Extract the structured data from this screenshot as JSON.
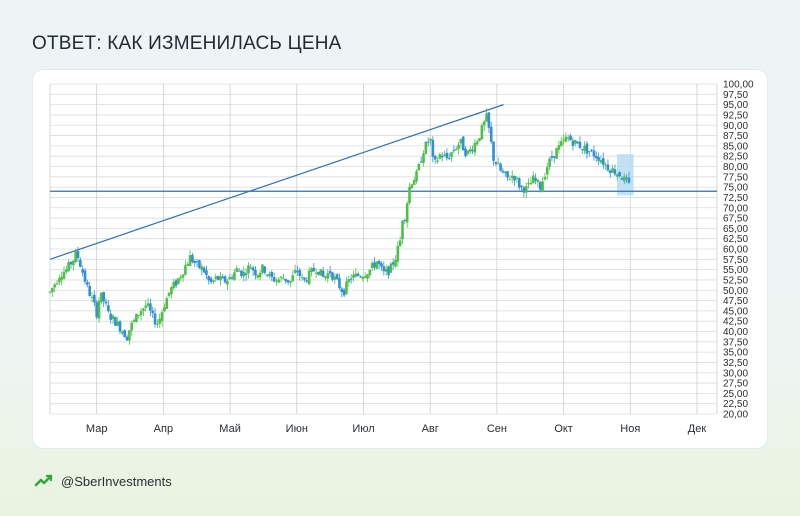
{
  "title": "ОТВЕТ: КАК ИЗМЕНИЛАСЬ ЦЕНА",
  "footer": {
    "handle": "@SberInvestments"
  },
  "colors": {
    "up": "#4fbf48",
    "down": "#2f8fd8",
    "trendline": "#2f6fb3",
    "highlight": "#b8dcf3"
  },
  "chart_data": {
    "type": "candlestick",
    "title": "",
    "xlabel": "",
    "ylabel": "",
    "ylim": [
      20,
      100
    ],
    "y_ticks": [
      "100,00",
      "97,50",
      "95,00",
      "92,50",
      "90,00",
      "87,50",
      "85,00",
      "82,50",
      "80,00",
      "77,50",
      "75,00",
      "72,50",
      "70,00",
      "67,50",
      "65,00",
      "62,50",
      "60,00",
      "57,50",
      "55,00",
      "52,50",
      "50,00",
      "47,50",
      "45,00",
      "42,50",
      "40,00",
      "37,50",
      "35,00",
      "32,50",
      "30,00",
      "27,50",
      "25,00",
      "22,50",
      "20,00"
    ],
    "x_labels": [
      "Мар",
      "Апр",
      "Май",
      "Июн",
      "Июл",
      "Авг",
      "Сен",
      "Окт",
      "Ноя",
      "Дек"
    ],
    "x_label_positions": [
      1,
      2,
      3,
      4,
      5,
      6,
      7,
      8,
      9,
      10
    ],
    "x_range": [
      0.3,
      10.3
    ],
    "horizontal_line": {
      "value": 74
    },
    "trendline": {
      "from": {
        "x": 0.3,
        "y": 57.5
      },
      "to": {
        "x": 7.1,
        "y": 95
      }
    },
    "highlight_zone": {
      "x_start": 8.8,
      "x_end": 9.05,
      "y_low": 73,
      "y_high": 83
    },
    "price_path": [
      [
        0.3,
        49.5
      ],
      [
        0.45,
        54
      ],
      [
        0.55,
        55
      ],
      [
        0.65,
        57.5
      ],
      [
        0.7,
        59
      ],
      [
        0.78,
        55
      ],
      [
        0.85,
        51
      ],
      [
        0.95,
        47
      ],
      [
        1.0,
        44.5
      ],
      [
        1.05,
        49
      ],
      [
        1.12,
        47
      ],
      [
        1.18,
        44
      ],
      [
        1.25,
        43
      ],
      [
        1.3,
        42
      ],
      [
        1.4,
        40
      ],
      [
        1.45,
        38.5
      ],
      [
        1.5,
        41
      ],
      [
        1.58,
        43
      ],
      [
        1.65,
        45
      ],
      [
        1.75,
        46.5
      ],
      [
        1.85,
        43
      ],
      [
        1.92,
        42
      ],
      [
        2.0,
        46
      ],
      [
        2.1,
        50
      ],
      [
        2.2,
        52
      ],
      [
        2.3,
        55
      ],
      [
        2.4,
        58
      ],
      [
        2.5,
        56
      ],
      [
        2.6,
        55
      ],
      [
        2.7,
        51.5
      ],
      [
        2.8,
        53
      ],
      [
        2.9,
        52
      ],
      [
        3.0,
        53
      ],
      [
        3.1,
        55
      ],
      [
        3.2,
        54
      ],
      [
        3.3,
        56
      ],
      [
        3.4,
        54
      ],
      [
        3.5,
        55.5
      ],
      [
        3.6,
        53
      ],
      [
        3.7,
        52.5
      ],
      [
        3.8,
        53
      ],
      [
        3.9,
        52
      ],
      [
        4.0,
        55
      ],
      [
        4.1,
        52
      ],
      [
        4.2,
        54
      ],
      [
        4.3,
        55.5
      ],
      [
        4.4,
        53
      ],
      [
        4.5,
        54.5
      ],
      [
        4.6,
        52
      ],
      [
        4.7,
        49.5
      ],
      [
        4.8,
        53
      ],
      [
        4.9,
        53.5
      ],
      [
        5.0,
        54
      ],
      [
        5.1,
        55
      ],
      [
        5.2,
        57
      ],
      [
        5.3,
        54
      ],
      [
        5.4,
        55
      ],
      [
        5.48,
        58
      ],
      [
        5.55,
        62
      ],
      [
        5.6,
        70
      ],
      [
        5.62,
        68
      ],
      [
        5.7,
        76
      ],
      [
        5.8,
        78
      ],
      [
        5.9,
        84
      ],
      [
        6.0,
        87
      ],
      [
        6.05,
        80
      ],
      [
        6.15,
        83
      ],
      [
        6.25,
        82
      ],
      [
        6.35,
        84
      ],
      [
        6.45,
        86
      ],
      [
        6.55,
        83
      ],
      [
        6.65,
        85
      ],
      [
        6.75,
        88
      ],
      [
        6.85,
        92
      ],
      [
        6.95,
        82
      ],
      [
        7.05,
        79
      ],
      [
        7.15,
        77
      ],
      [
        7.25,
        78
      ],
      [
        7.35,
        75
      ],
      [
        7.45,
        74.5
      ],
      [
        7.55,
        77
      ],
      [
        7.65,
        75
      ],
      [
        7.75,
        80
      ],
      [
        7.85,
        83
      ],
      [
        7.95,
        85
      ],
      [
        8.05,
        87
      ],
      [
        8.15,
        86
      ],
      [
        8.25,
        85
      ],
      [
        8.35,
        84
      ],
      [
        8.45,
        83
      ],
      [
        8.55,
        82
      ],
      [
        8.65,
        80
      ],
      [
        8.75,
        79
      ],
      [
        8.85,
        78
      ],
      [
        8.95,
        76
      ],
      [
        9.0,
        75
      ]
    ]
  }
}
